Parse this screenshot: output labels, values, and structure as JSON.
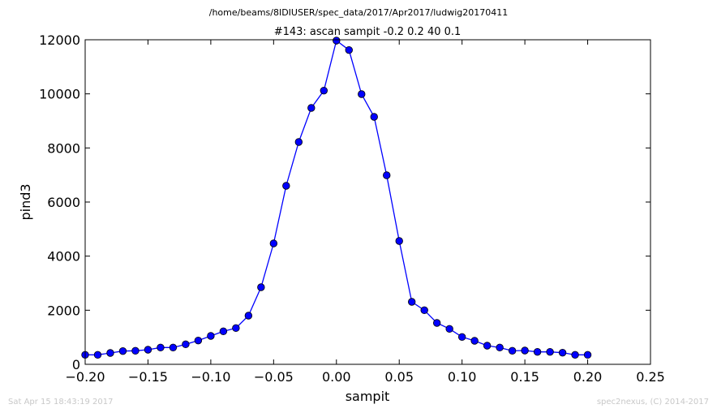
{
  "header": {
    "suptitle": "/home/beams/8IDIUSER/spec_data/2017/Apr2017/ludwig20170411",
    "title": "#143: ascan  sampit -0.2 0.2  40 0.1"
  },
  "footer": {
    "timestamp": "Sat Apr 15 18:43:19 2017",
    "credit": "spec2nexus, (C) 2014-2017"
  },
  "chart_data": {
    "type": "line",
    "xlabel": "sampit",
    "ylabel": "pind3",
    "xlim": [
      -0.2,
      0.25
    ],
    "ylim": [
      0,
      12000
    ],
    "xticks": [
      -0.2,
      -0.15,
      -0.1,
      -0.05,
      0.0,
      0.05,
      0.1,
      0.15,
      0.2,
      0.25
    ],
    "xtick_labels": [
      "−0.20",
      "−0.15",
      "−0.10",
      "−0.05",
      "0.00",
      "0.05",
      "0.10",
      "0.15",
      "0.20",
      "0.25"
    ],
    "yticks": [
      0,
      2000,
      4000,
      6000,
      8000,
      10000,
      12000
    ],
    "ytick_labels": [
      "0",
      "2000",
      "4000",
      "6000",
      "8000",
      "10000",
      "12000"
    ],
    "grid": false,
    "series": [
      {
        "color": "#0000ff",
        "marker": "circle",
        "x": [
          -0.2,
          -0.19,
          -0.18,
          -0.17,
          -0.16,
          -0.15,
          -0.14,
          -0.13,
          -0.12,
          -0.11,
          -0.1,
          -0.09,
          -0.08,
          -0.07,
          -0.06,
          -0.05,
          -0.04,
          -0.03,
          -0.02,
          -0.01,
          0.0,
          0.01,
          0.02,
          0.03,
          0.04,
          0.05,
          0.06,
          0.07,
          0.08,
          0.09,
          0.1,
          0.11,
          0.12,
          0.13,
          0.14,
          0.15,
          0.16,
          0.17,
          0.18,
          0.19,
          0.2
        ],
        "y": [
          350,
          350,
          420,
          490,
          500,
          540,
          620,
          620,
          740,
          880,
          1050,
          1220,
          1340,
          1800,
          2850,
          4470,
          6600,
          8220,
          9480,
          10120,
          11970,
          11620,
          9990,
          9150,
          6990,
          4560,
          2310,
          2000,
          1530,
          1310,
          1010,
          870,
          690,
          620,
          500,
          510,
          460,
          460,
          430,
          350,
          350
        ]
      }
    ]
  }
}
